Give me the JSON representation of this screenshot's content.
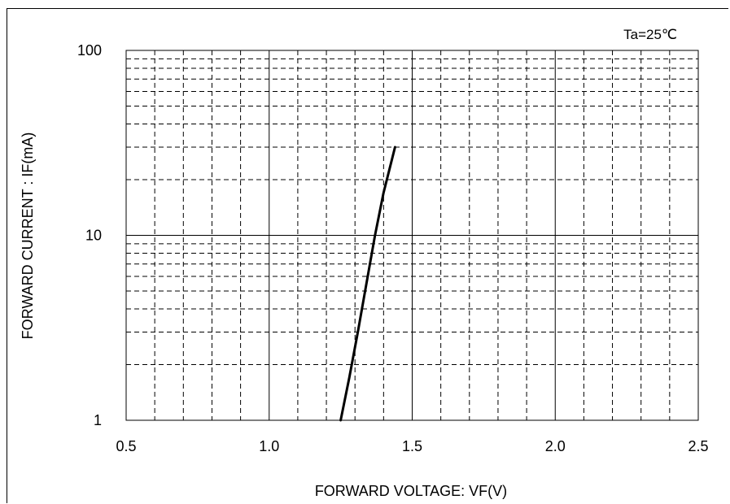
{
  "chart_data": {
    "type": "line",
    "xlabel": "FORWARD VOLTAGE: VF(V)",
    "ylabel": "FORWARD CURRENT : IF(mA)",
    "annotation": "Ta=25℃",
    "x_scale": "linear",
    "y_scale": "log",
    "xlim": [
      0.5,
      2.5
    ],
    "ylim": [
      1,
      100
    ],
    "x_ticks": [
      0.5,
      1.0,
      1.5,
      2.0,
      2.5
    ],
    "x_tick_labels": [
      "0.5",
      "1.0",
      "1.5",
      "2.0",
      "2.5"
    ],
    "y_ticks": [
      1,
      10,
      100
    ],
    "y_tick_labels": [
      "1",
      "10",
      "100"
    ],
    "x_minor_step": 0.1,
    "grid": true,
    "series": [
      {
        "color": "#000000",
        "x": [
          1.25,
          1.28,
          1.31,
          1.34,
          1.37,
          1.4,
          1.44
        ],
        "y": [
          1,
          1.7,
          3.0,
          5.5,
          10,
          17,
          30
        ]
      }
    ]
  }
}
